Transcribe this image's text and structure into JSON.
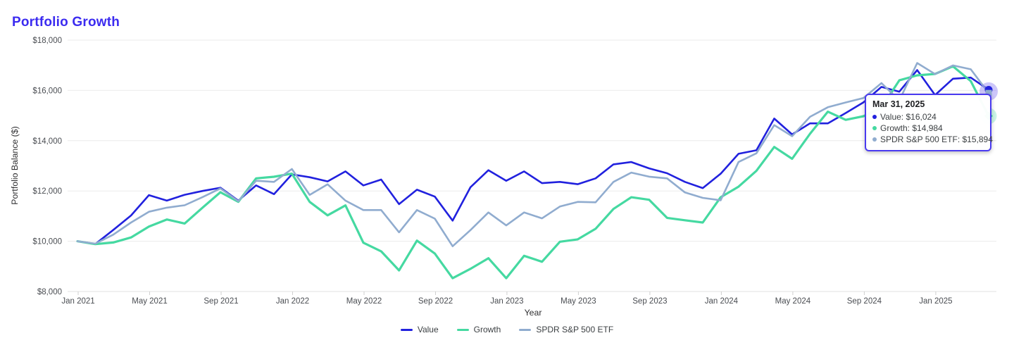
{
  "title": "Portfolio Growth",
  "colors": {
    "title": "#3b2bf0",
    "grid": "#ebebeb",
    "axis_line": "#e0e0e0",
    "tick_mark": "#d0d0d0",
    "tick_text": "#4a4d52",
    "axis_title_text": "#2e2e30",
    "tooltip_border": "#4a3af0",
    "value_series": "#2121de",
    "growth_series": "#45d9a1",
    "spdr_series": "#90accf",
    "marker_halo_blue": "rgba(121,104,240,0.38)",
    "marker_halo_teal": "rgba(69,217,161,0.28)"
  },
  "chart_data": {
    "type": "line",
    "title": "Portfolio Growth",
    "xlabel": "Year",
    "ylabel": "Portfolio Balance ($)",
    "ylim": [
      8000,
      18000
    ],
    "grid": "horizontal-only",
    "legend_position": "bottom",
    "y_tick_labels": [
      "$8,000",
      "$10,000",
      "$12,000",
      "$14,000",
      "$16,000",
      "$18,000"
    ],
    "x_tick_labels": [
      {
        "label": "Jan 2021",
        "month_index": 1
      },
      {
        "label": "May 2021",
        "month_index": 5
      },
      {
        "label": "Sep 2021",
        "month_index": 9
      },
      {
        "label": "Jan 2022",
        "month_index": 13
      },
      {
        "label": "May 2022",
        "month_index": 17
      },
      {
        "label": "Sep 2022",
        "month_index": 21
      },
      {
        "label": "Jan 2023",
        "month_index": 25
      },
      {
        "label": "May 2023",
        "month_index": 29
      },
      {
        "label": "Sep 2023",
        "month_index": 33
      },
      {
        "label": "Jan 2024",
        "month_index": 37
      },
      {
        "label": "May 2024",
        "month_index": 41
      },
      {
        "label": "Sep 2024",
        "month_index": 45
      },
      {
        "label": "Jan 2025",
        "month_index": 49
      }
    ],
    "months": [
      "Dec 2020",
      "Jan 2021",
      "Feb 2021",
      "Mar 2021",
      "Apr 2021",
      "May 2021",
      "Jun 2021",
      "Jul 2021",
      "Aug 2021",
      "Sep 2021",
      "Oct 2021",
      "Nov 2021",
      "Dec 2021",
      "Jan 2022",
      "Feb 2022",
      "Mar 2022",
      "Apr 2022",
      "May 2022",
      "Jun 2022",
      "Jul 2022",
      "Aug 2022",
      "Sep 2022",
      "Oct 2022",
      "Nov 2022",
      "Dec 2022",
      "Jan 2023",
      "Feb 2023",
      "Mar 2023",
      "Apr 2023",
      "May 2023",
      "Jun 2023",
      "Jul 2023",
      "Aug 2023",
      "Sep 2023",
      "Oct 2023",
      "Nov 2023",
      "Dec 2023",
      "Jan 2024",
      "Feb 2024",
      "Mar 2024",
      "Apr 2024",
      "May 2024",
      "Jun 2024",
      "Jul 2024",
      "Aug 2024",
      "Sep 2024",
      "Oct 2024",
      "Nov 2024",
      "Dec 2024",
      "Jan 2025",
      "Feb 2025",
      "Mar 2025"
    ],
    "series": [
      {
        "name": "Value",
        "color": "#2121de",
        "line_width": 2.6,
        "end_marker": "circle",
        "values": [
          10000,
          9890,
          10445,
          11025,
          11835,
          11615,
          11850,
          12000,
          12130,
          11615,
          12220,
          11875,
          12660,
          12545,
          12380,
          12780,
          12220,
          12455,
          11475,
          12050,
          11775,
          10820,
          12150,
          12825,
          12405,
          12780,
          12310,
          12360,
          12270,
          12500,
          13060,
          13150,
          12900,
          12705,
          12360,
          12115,
          12685,
          13480,
          13620,
          14880,
          14250,
          14690,
          14690,
          15100,
          15530,
          16140,
          15950,
          16810,
          15815,
          16465,
          16510,
          16024
        ]
      },
      {
        "name": "Growth",
        "color": "#45d9a1",
        "line_width": 3.2,
        "end_marker": "diamond",
        "values": [
          10000,
          9885,
          9950,
          10150,
          10585,
          10865,
          10705,
          11335,
          11950,
          11570,
          12500,
          12565,
          12690,
          11565,
          11030,
          11425,
          9940,
          9600,
          8840,
          10025,
          9510,
          8530,
          8905,
          9325,
          8530,
          9420,
          9185,
          9980,
          10075,
          10495,
          11285,
          11750,
          11650,
          10930,
          10835,
          10745,
          11750,
          12170,
          12800,
          13750,
          13280,
          14275,
          15155,
          14830,
          14975,
          15310,
          16400,
          16600,
          16655,
          16960,
          16370,
          14984
        ]
      },
      {
        "name": "SPDR S&P 500 ETF",
        "color": "#90accf",
        "line_width": 2.6,
        "end_marker": "square",
        "values": [
          10000,
          9905,
          10260,
          10745,
          11175,
          11335,
          11430,
          11755,
          12100,
          11595,
          12405,
          12360,
          12875,
          11845,
          12265,
          11615,
          11240,
          11240,
          10355,
          11240,
          10900,
          9800,
          10445,
          11145,
          10630,
          11145,
          10910,
          11380,
          11565,
          11550,
          12360,
          12730,
          12570,
          12500,
          11940,
          11725,
          11630,
          13150,
          13500,
          14620,
          14180,
          14950,
          15330,
          15520,
          15700,
          16290,
          15600,
          17090,
          16650,
          16995,
          16840,
          15894
        ]
      }
    ]
  },
  "tooltip": {
    "date": "Mar 31, 2025",
    "rows": [
      {
        "label": "Value",
        "value": "$16,024",
        "color": "#2121de"
      },
      {
        "label": "Growth",
        "value": "$14,984",
        "color": "#45d9a1"
      },
      {
        "label": "SPDR S&P 500 ETF",
        "value": "$15,894",
        "color": "#90accf"
      }
    ]
  },
  "legend": {
    "items": [
      {
        "label": "Value",
        "color": "#2121de"
      },
      {
        "label": "Growth",
        "color": "#45d9a1"
      },
      {
        "label": "SPDR S&P 500 ETF",
        "color": "#90accf"
      }
    ]
  }
}
